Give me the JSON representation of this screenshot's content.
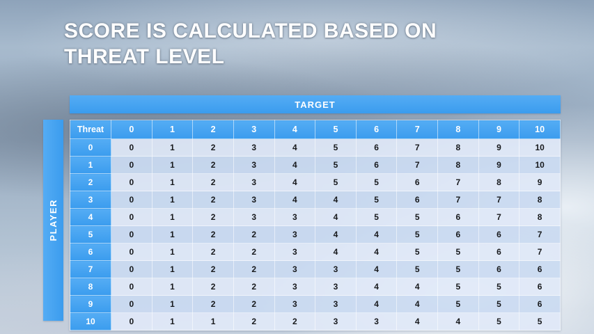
{
  "slide": {
    "title_line1": "SCORE IS CALCULATED BASED ON",
    "title_line2": "THREAT LEVEL"
  },
  "table": {
    "target_label": "TARGET",
    "player_label": "PLAYER",
    "corner_label": "Threat",
    "column_headers": [
      "0",
      "1",
      "2",
      "3",
      "4",
      "5",
      "6",
      "7",
      "8",
      "9",
      "10"
    ],
    "rows": [
      {
        "label": "0",
        "values": [
          0,
          1,
          2,
          3,
          4,
          5,
          6,
          7,
          8,
          9,
          10
        ]
      },
      {
        "label": "1",
        "values": [
          0,
          1,
          2,
          3,
          4,
          5,
          6,
          7,
          8,
          9,
          10
        ]
      },
      {
        "label": "2",
        "values": [
          0,
          1,
          2,
          3,
          4,
          5,
          5,
          6,
          7,
          8,
          9
        ]
      },
      {
        "label": "3",
        "values": [
          0,
          1,
          2,
          3,
          4,
          4,
          5,
          6,
          7,
          7,
          8
        ]
      },
      {
        "label": "4",
        "values": [
          0,
          1,
          2,
          3,
          3,
          4,
          5,
          5,
          6,
          7,
          8
        ]
      },
      {
        "label": "5",
        "values": [
          0,
          1,
          2,
          2,
          3,
          4,
          4,
          5,
          6,
          6,
          7
        ]
      },
      {
        "label": "6",
        "values": [
          0,
          1,
          2,
          2,
          3,
          4,
          4,
          5,
          5,
          6,
          7
        ]
      },
      {
        "label": "7",
        "values": [
          0,
          1,
          2,
          2,
          3,
          3,
          4,
          5,
          5,
          6,
          6
        ]
      },
      {
        "label": "8",
        "values": [
          0,
          1,
          2,
          2,
          3,
          3,
          4,
          4,
          5,
          5,
          6
        ]
      },
      {
        "label": "9",
        "values": [
          0,
          1,
          2,
          2,
          3,
          3,
          4,
          4,
          5,
          5,
          6
        ]
      },
      {
        "label": "10",
        "values": [
          0,
          1,
          1,
          2,
          2,
          3,
          3,
          4,
          4,
          5,
          5
        ]
      }
    ]
  },
  "colors": {
    "accent_blue": "#3FA0EF",
    "band_light": "#DFE8F7",
    "band_dark": "#CADAF1",
    "title_text": "#FFFFFF"
  }
}
